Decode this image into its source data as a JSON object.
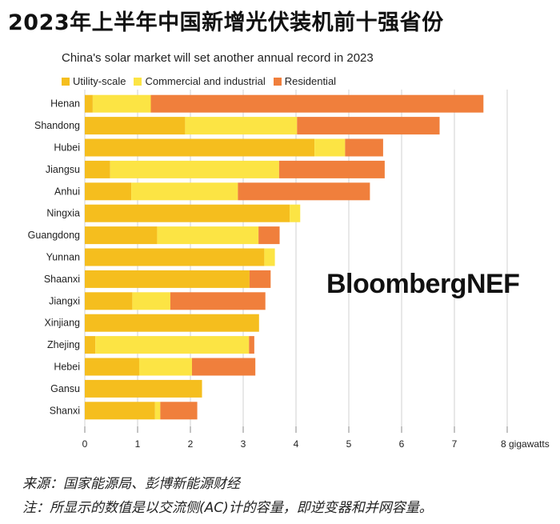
{
  "headline": "2023年上半年中国新增光伏装机前十强省份",
  "source": "来源：国家能源局、彭博新能源财经",
  "note": "注：所显示的数值是以交流侧(AC)计的容量，即逆变器和并网容量。",
  "brand": "BloombergNEF",
  "chart_data": {
    "type": "bar",
    "orientation": "horizontal",
    "stacked": true,
    "title": "China's solar market will set another annual record in 2023",
    "xlabel": "gigawatts",
    "x_unit_label": "8 gigawatts",
    "xlim": [
      0,
      8
    ],
    "xticks": [
      "0",
      "1",
      "2",
      "3",
      "4",
      "5",
      "6",
      "7"
    ],
    "grid": "vertical",
    "legend_position": "top-left",
    "categories": [
      "Henan",
      "Shandong",
      "Hubei",
      "Jiangsu",
      "Anhui",
      "Ningxia",
      "Guangdong",
      "Yunnan",
      "Shaanxi",
      "Jiangxi",
      "Xinjiang",
      "Zhejing",
      "Hebei",
      "Gansu",
      "Shanxi"
    ],
    "series": [
      {
        "name": "Utility-scale",
        "color": "#F5BE1E",
        "values": [
          0.15,
          1.9,
          4.35,
          0.48,
          0.88,
          3.88,
          1.37,
          3.4,
          3.12,
          0.9,
          3.3,
          0.2,
          1.03,
          2.22,
          1.33
        ]
      },
      {
        "name": "Commercial and industrial",
        "color": "#FCE444",
        "values": [
          1.1,
          2.12,
          0.58,
          3.2,
          2.02,
          0.2,
          1.92,
          0.2,
          0.0,
          0.72,
          0.0,
          2.91,
          1.0,
          0.0,
          0.1
        ]
      },
      {
        "name": "Residential",
        "color": "#F07F3C",
        "values": [
          6.3,
          2.7,
          0.72,
          2.0,
          2.5,
          0.0,
          0.4,
          0.0,
          0.4,
          1.8,
          0.0,
          0.1,
          1.2,
          0.0,
          0.7
        ]
      }
    ]
  }
}
